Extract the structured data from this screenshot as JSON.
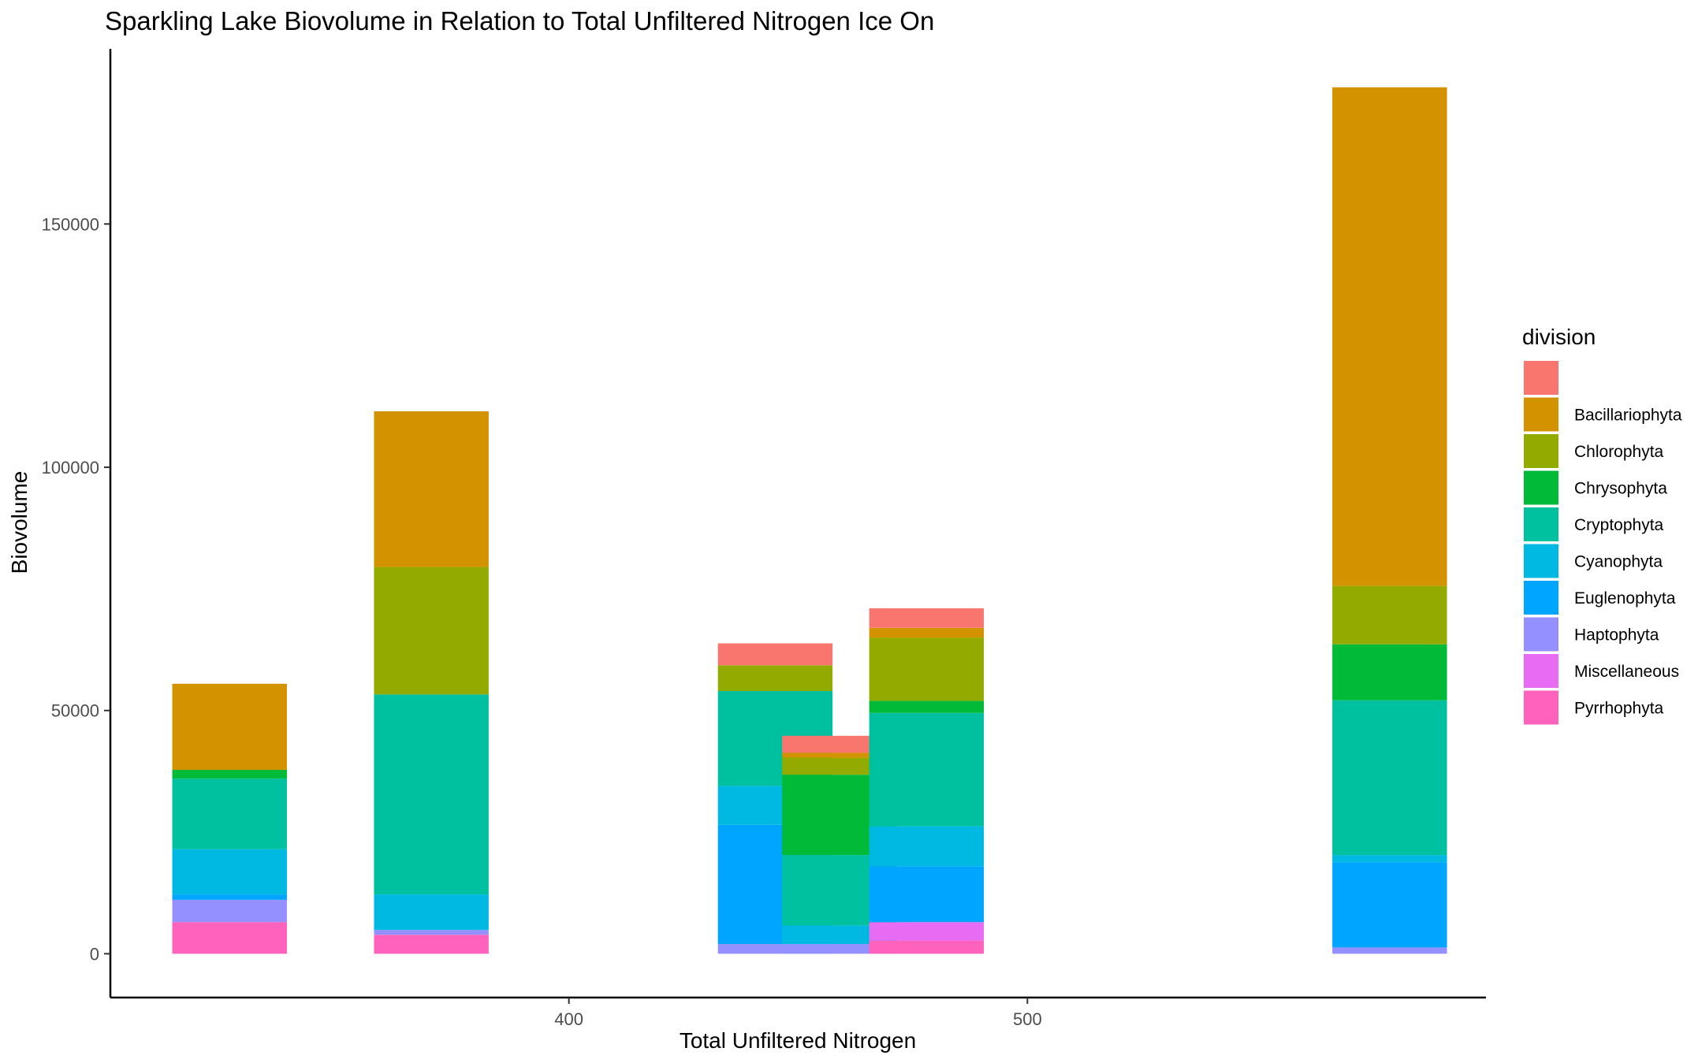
{
  "chart_data": {
    "type": "bar",
    "stacked": true,
    "title": "Sparkling Lake Biovolume in Relation to Total Unfiltered Nitrogen Ice On",
    "xlabel": "Total Unfiltered Nitrogen",
    "ylabel": "Biovolume",
    "xlim": [
      300,
      600
    ],
    "ylim": [
      -9000,
      186000
    ],
    "x_ticks": [
      400,
      500
    ],
    "y_ticks": [
      0,
      50000,
      100000,
      150000
    ],
    "grid": false,
    "legend": {
      "title": "division",
      "position": "right"
    },
    "divisions": [
      {
        "name": "",
        "color": "#F8766D"
      },
      {
        "name": "Bacillariophyta",
        "color": "#D39200"
      },
      {
        "name": "Chlorophyta",
        "color": "#93AA00"
      },
      {
        "name": "Chrysophyta",
        "color": "#00BA38"
      },
      {
        "name": "Cryptophyta",
        "color": "#00C19F"
      },
      {
        "name": "Cyanophyta",
        "color": "#00B9E3"
      },
      {
        "name": "Euglenophyta",
        "color": "#00A5FF"
      },
      {
        "name": "Haptophyta",
        "color": "#9590FF"
      },
      {
        "name": "Miscellaneous",
        "color": "#E76BF3"
      },
      {
        "name": "Pyrrhophyta",
        "color": "#FF62BC"
      }
    ],
    "bars": [
      {
        "x": 326,
        "values": {
          "": 0,
          "Bacillariophyta": 17700,
          "Chlorophyta": 0,
          "Chrysophyta": 1800,
          "Cryptophyta": 14500,
          "Cyanophyta": 9300,
          "Euglenophyta": 1100,
          "Haptophyta": 4600,
          "Miscellaneous": 0,
          "Pyrrhophyta": 6500
        }
      },
      {
        "x": 370,
        "values": {
          "": 0,
          "Bacillariophyta": 32000,
          "Chlorophyta": 26200,
          "Chrysophyta": 0,
          "Cryptophyta": 41100,
          "Cyanophyta": 7300,
          "Euglenophyta": 0,
          "Haptophyta": 1000,
          "Miscellaneous": 0,
          "Pyrrhophyta": 3900
        }
      },
      {
        "x": 445,
        "values": {
          "": 4500,
          "Bacillariophyta": 0,
          "Chlorophyta": 5300,
          "Chrysophyta": 0,
          "Cryptophyta": 19500,
          "Cyanophyta": 8000,
          "Euglenophyta": 24500,
          "Haptophyta": 2000,
          "Miscellaneous": 0,
          "Pyrrhophyta": 0
        }
      },
      {
        "x": 459,
        "values": {
          "": 3500,
          "Bacillariophyta": 1000,
          "Chlorophyta": 3500,
          "Chrysophyta": 16500,
          "Cryptophyta": 14500,
          "Cyanophyta": 3800,
          "Euglenophyta": 0,
          "Haptophyta": 2000,
          "Miscellaneous": 0,
          "Pyrrhophyta": 0
        }
      },
      {
        "x": 478,
        "values": {
          "": 4000,
          "Bacillariophyta": 2000,
          "Chlorophyta": 13000,
          "Chrysophyta": 2500,
          "Cryptophyta": 23300,
          "Cyanophyta": 8200,
          "Euglenophyta": 11500,
          "Haptophyta": 0,
          "Miscellaneous": 3800,
          "Pyrrhophyta": 2700
        }
      },
      {
        "x": 579,
        "values": {
          "": 0,
          "Bacillariophyta": 102500,
          "Chlorophyta": 12000,
          "Chrysophyta": 11500,
          "Cryptophyta": 31800,
          "Cyanophyta": 1500,
          "Euglenophyta": 17500,
          "Haptophyta": 1300,
          "Miscellaneous": 0,
          "Pyrrhophyta": 0
        }
      }
    ]
  }
}
